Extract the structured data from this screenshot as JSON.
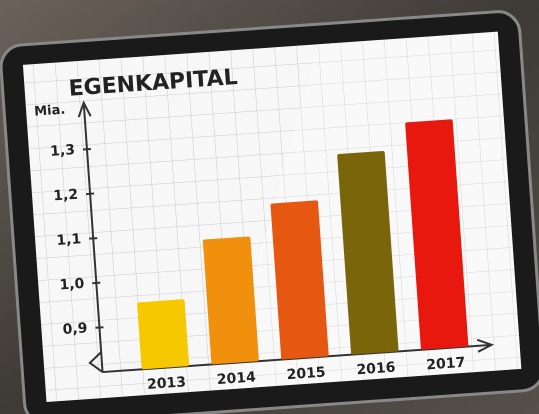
{
  "chart_data": {
    "type": "bar",
    "title": "EGENKAPITAL",
    "y_label": "Mia.",
    "categories": [
      "2013",
      "2014",
      "2015",
      "2016",
      "2017"
    ],
    "values": [
      0.95,
      1.08,
      1.15,
      1.25,
      1.31
    ],
    "colors": [
      "#f6c800",
      "#f0900c",
      "#e65812",
      "#7a650a",
      "#e8180e"
    ],
    "ylim": [
      0.8,
      1.4
    ],
    "yticks": [
      {
        "value": 0.9,
        "label": "0,9"
      },
      {
        "value": 1.0,
        "label": "1,0"
      },
      {
        "value": 1.1,
        "label": "1,1"
      },
      {
        "value": 1.2,
        "label": "1,2"
      },
      {
        "value": 1.3,
        "label": "1,3"
      }
    ]
  }
}
